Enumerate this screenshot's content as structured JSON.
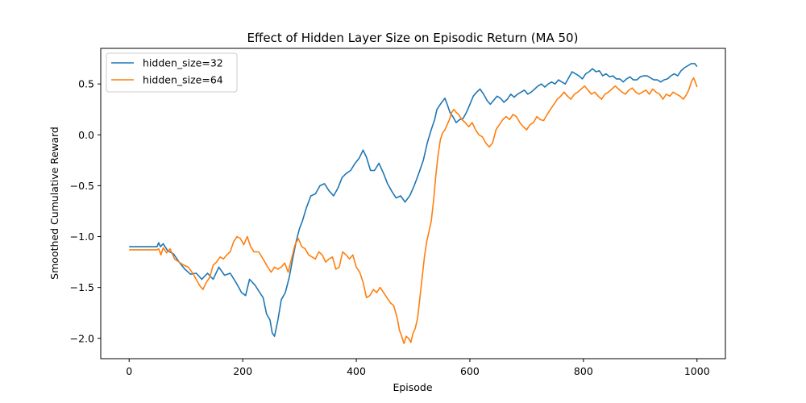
{
  "chart_data": {
    "type": "line",
    "title": "Effect of Hidden Layer Size on Episodic Return (MA 50)",
    "xlabel": "Episode",
    "ylabel": "Smoothed Cumulative Reward",
    "xlim": [
      -50,
      1050
    ],
    "ylim": [
      -2.2,
      0.85
    ],
    "xticks": [
      0,
      200,
      400,
      600,
      800,
      1000
    ],
    "yticks": [
      -2.0,
      -1.5,
      -1.0,
      -0.5,
      0.0,
      0.5
    ],
    "xtick_labels": [
      "0",
      "200",
      "400",
      "600",
      "800",
      "1000"
    ],
    "ytick_labels": [
      "−2.0",
      "−1.5",
      "−1.0",
      "−0.5",
      "0.0",
      "0.5"
    ],
    "grid": false,
    "legend_position": "top-left",
    "series": [
      {
        "name": "hidden_size=32",
        "color": "#1f77b4",
        "points": [
          [
            0,
            -1.1
          ],
          [
            49,
            -1.1
          ],
          [
            52,
            -1.06
          ],
          [
            55,
            -1.1
          ],
          [
            60,
            -1.07
          ],
          [
            68,
            -1.14
          ],
          [
            78,
            -1.17
          ],
          [
            88,
            -1.25
          ],
          [
            98,
            -1.32
          ],
          [
            108,
            -1.37
          ],
          [
            118,
            -1.36
          ],
          [
            128,
            -1.42
          ],
          [
            138,
            -1.36
          ],
          [
            148,
            -1.42
          ],
          [
            158,
            -1.3
          ],
          [
            168,
            -1.38
          ],
          [
            178,
            -1.36
          ],
          [
            188,
            -1.45
          ],
          [
            198,
            -1.55
          ],
          [
            205,
            -1.58
          ],
          [
            212,
            -1.42
          ],
          [
            222,
            -1.48
          ],
          [
            230,
            -1.55
          ],
          [
            236,
            -1.6
          ],
          [
            242,
            -1.76
          ],
          [
            248,
            -1.82
          ],
          [
            252,
            -1.95
          ],
          [
            256,
            -1.98
          ],
          [
            262,
            -1.82
          ],
          [
            268,
            -1.62
          ],
          [
            275,
            -1.55
          ],
          [
            282,
            -1.4
          ],
          [
            288,
            -1.22
          ],
          [
            294,
            -1.05
          ],
          [
            300,
            -0.92
          ],
          [
            305,
            -0.85
          ],
          [
            312,
            -0.72
          ],
          [
            320,
            -0.6
          ],
          [
            328,
            -0.58
          ],
          [
            336,
            -0.5
          ],
          [
            344,
            -0.48
          ],
          [
            352,
            -0.55
          ],
          [
            360,
            -0.6
          ],
          [
            368,
            -0.52
          ],
          [
            375,
            -0.42
          ],
          [
            382,
            -0.38
          ],
          [
            390,
            -0.35
          ],
          [
            398,
            -0.28
          ],
          [
            405,
            -0.23
          ],
          [
            412,
            -0.15
          ],
          [
            418,
            -0.22
          ],
          [
            425,
            -0.35
          ],
          [
            432,
            -0.35
          ],
          [
            440,
            -0.28
          ],
          [
            448,
            -0.38
          ],
          [
            455,
            -0.48
          ],
          [
            462,
            -0.55
          ],
          [
            470,
            -0.62
          ],
          [
            478,
            -0.6
          ],
          [
            486,
            -0.66
          ],
          [
            494,
            -0.6
          ],
          [
            502,
            -0.5
          ],
          [
            510,
            -0.38
          ],
          [
            518,
            -0.25
          ],
          [
            525,
            -0.08
          ],
          [
            532,
            0.05
          ],
          [
            538,
            0.15
          ],
          [
            542,
            0.25
          ],
          [
            548,
            0.3
          ],
          [
            552,
            0.33
          ],
          [
            556,
            0.36
          ],
          [
            560,
            0.3
          ],
          [
            565,
            0.22
          ],
          [
            570,
            0.18
          ],
          [
            576,
            0.12
          ],
          [
            582,
            0.15
          ],
          [
            588,
            0.16
          ],
          [
            594,
            0.22
          ],
          [
            600,
            0.3
          ],
          [
            606,
            0.38
          ],
          [
            612,
            0.42
          ],
          [
            618,
            0.45
          ],
          [
            624,
            0.4
          ],
          [
            630,
            0.34
          ],
          [
            636,
            0.3
          ],
          [
            642,
            0.34
          ],
          [
            648,
            0.38
          ],
          [
            654,
            0.36
          ],
          [
            660,
            0.32
          ],
          [
            666,
            0.35
          ],
          [
            672,
            0.4
          ],
          [
            678,
            0.37
          ],
          [
            684,
            0.4
          ],
          [
            690,
            0.42
          ],
          [
            696,
            0.44
          ],
          [
            702,
            0.4
          ],
          [
            708,
            0.42
          ],
          [
            714,
            0.45
          ],
          [
            720,
            0.48
          ],
          [
            726,
            0.5
          ],
          [
            732,
            0.47
          ],
          [
            738,
            0.5
          ],
          [
            744,
            0.52
          ],
          [
            750,
            0.5
          ],
          [
            756,
            0.54
          ],
          [
            762,
            0.52
          ],
          [
            768,
            0.5
          ],
          [
            774,
            0.56
          ],
          [
            780,
            0.62
          ],
          [
            786,
            0.6
          ],
          [
            792,
            0.58
          ],
          [
            798,
            0.55
          ],
          [
            804,
            0.6
          ],
          [
            810,
            0.62
          ],
          [
            816,
            0.65
          ],
          [
            822,
            0.62
          ],
          [
            828,
            0.63
          ],
          [
            834,
            0.58
          ],
          [
            840,
            0.6
          ],
          [
            846,
            0.57
          ],
          [
            852,
            0.58
          ],
          [
            858,
            0.55
          ],
          [
            864,
            0.55
          ],
          [
            870,
            0.52
          ],
          [
            876,
            0.55
          ],
          [
            882,
            0.57
          ],
          [
            888,
            0.54
          ],
          [
            894,
            0.54
          ],
          [
            900,
            0.57
          ],
          [
            906,
            0.58
          ],
          [
            912,
            0.58
          ],
          [
            918,
            0.56
          ],
          [
            924,
            0.54
          ],
          [
            930,
            0.54
          ],
          [
            936,
            0.52
          ],
          [
            942,
            0.54
          ],
          [
            948,
            0.55
          ],
          [
            954,
            0.58
          ],
          [
            960,
            0.6
          ],
          [
            966,
            0.58
          ],
          [
            972,
            0.63
          ],
          [
            978,
            0.66
          ],
          [
            984,
            0.68
          ],
          [
            990,
            0.7
          ],
          [
            996,
            0.7
          ],
          [
            1000,
            0.67
          ]
        ]
      },
      {
        "name": "hidden_size=64",
        "color": "#ff7f0e",
        "points": [
          [
            0,
            -1.13
          ],
          [
            49,
            -1.13
          ],
          [
            52,
            -1.12
          ],
          [
            56,
            -1.18
          ],
          [
            60,
            -1.11
          ],
          [
            66,
            -1.16
          ],
          [
            72,
            -1.12
          ],
          [
            80,
            -1.22
          ],
          [
            88,
            -1.25
          ],
          [
            96,
            -1.28
          ],
          [
            104,
            -1.3
          ],
          [
            112,
            -1.36
          ],
          [
            118,
            -1.42
          ],
          [
            124,
            -1.48
          ],
          [
            130,
            -1.52
          ],
          [
            136,
            -1.45
          ],
          [
            142,
            -1.4
          ],
          [
            148,
            -1.28
          ],
          [
            154,
            -1.25
          ],
          [
            160,
            -1.2
          ],
          [
            166,
            -1.22
          ],
          [
            172,
            -1.18
          ],
          [
            178,
            -1.15
          ],
          [
            184,
            -1.05
          ],
          [
            190,
            -1.0
          ],
          [
            196,
            -1.02
          ],
          [
            202,
            -1.08
          ],
          [
            208,
            -1.0
          ],
          [
            214,
            -1.1
          ],
          [
            220,
            -1.15
          ],
          [
            228,
            -1.15
          ],
          [
            236,
            -1.22
          ],
          [
            244,
            -1.3
          ],
          [
            250,
            -1.35
          ],
          [
            256,
            -1.3
          ],
          [
            262,
            -1.32
          ],
          [
            268,
            -1.3
          ],
          [
            274,
            -1.26
          ],
          [
            280,
            -1.35
          ],
          [
            286,
            -1.22
          ],
          [
            292,
            -1.08
          ],
          [
            298,
            -1.02
          ],
          [
            304,
            -1.1
          ],
          [
            310,
            -1.12
          ],
          [
            316,
            -1.18
          ],
          [
            322,
            -1.2
          ],
          [
            328,
            -1.22
          ],
          [
            334,
            -1.15
          ],
          [
            340,
            -1.18
          ],
          [
            346,
            -1.25
          ],
          [
            352,
            -1.22
          ],
          [
            358,
            -1.2
          ],
          [
            364,
            -1.32
          ],
          [
            370,
            -1.3
          ],
          [
            376,
            -1.15
          ],
          [
            382,
            -1.18
          ],
          [
            388,
            -1.22
          ],
          [
            394,
            -1.18
          ],
          [
            400,
            -1.3
          ],
          [
            406,
            -1.35
          ],
          [
            412,
            -1.45
          ],
          [
            418,
            -1.6
          ],
          [
            424,
            -1.58
          ],
          [
            430,
            -1.52
          ],
          [
            436,
            -1.55
          ],
          [
            442,
            -1.5
          ],
          [
            448,
            -1.55
          ],
          [
            454,
            -1.6
          ],
          [
            460,
            -1.65
          ],
          [
            466,
            -1.68
          ],
          [
            472,
            -1.8
          ],
          [
            476,
            -1.92
          ],
          [
            480,
            -1.98
          ],
          [
            484,
            -2.05
          ],
          [
            488,
            -1.98
          ],
          [
            492,
            -2.0
          ],
          [
            496,
            -2.04
          ],
          [
            500,
            -1.95
          ],
          [
            504,
            -1.9
          ],
          [
            508,
            -1.8
          ],
          [
            512,
            -1.6
          ],
          [
            516,
            -1.4
          ],
          [
            520,
            -1.2
          ],
          [
            524,
            -1.05
          ],
          [
            528,
            -0.95
          ],
          [
            532,
            -0.85
          ],
          [
            536,
            -0.65
          ],
          [
            540,
            -0.4
          ],
          [
            544,
            -0.2
          ],
          [
            548,
            -0.05
          ],
          [
            552,
            0.02
          ],
          [
            556,
            0.05
          ],
          [
            560,
            0.1
          ],
          [
            564,
            0.15
          ],
          [
            568,
            0.22
          ],
          [
            572,
            0.25
          ],
          [
            576,
            0.22
          ],
          [
            580,
            0.2
          ],
          [
            586,
            0.15
          ],
          [
            592,
            0.12
          ],
          [
            598,
            0.08
          ],
          [
            604,
            0.12
          ],
          [
            610,
            0.05
          ],
          [
            616,
            0.0
          ],
          [
            622,
            -0.02
          ],
          [
            628,
            -0.08
          ],
          [
            634,
            -0.12
          ],
          [
            640,
            -0.08
          ],
          [
            646,
            0.05
          ],
          [
            652,
            0.1
          ],
          [
            658,
            0.15
          ],
          [
            664,
            0.18
          ],
          [
            670,
            0.15
          ],
          [
            676,
            0.2
          ],
          [
            682,
            0.18
          ],
          [
            688,
            0.12
          ],
          [
            694,
            0.08
          ],
          [
            700,
            0.05
          ],
          [
            706,
            0.1
          ],
          [
            712,
            0.12
          ],
          [
            718,
            0.18
          ],
          [
            724,
            0.15
          ],
          [
            730,
            0.14
          ],
          [
            736,
            0.2
          ],
          [
            742,
            0.25
          ],
          [
            748,
            0.3
          ],
          [
            754,
            0.35
          ],
          [
            760,
            0.38
          ],
          [
            766,
            0.42
          ],
          [
            772,
            0.38
          ],
          [
            778,
            0.35
          ],
          [
            784,
            0.4
          ],
          [
            790,
            0.42
          ],
          [
            796,
            0.45
          ],
          [
            802,
            0.48
          ],
          [
            808,
            0.44
          ],
          [
            814,
            0.4
          ],
          [
            820,
            0.42
          ],
          [
            826,
            0.38
          ],
          [
            832,
            0.35
          ],
          [
            838,
            0.4
          ],
          [
            844,
            0.42
          ],
          [
            850,
            0.45
          ],
          [
            856,
            0.48
          ],
          [
            862,
            0.45
          ],
          [
            868,
            0.42
          ],
          [
            874,
            0.4
          ],
          [
            880,
            0.44
          ],
          [
            886,
            0.46
          ],
          [
            892,
            0.42
          ],
          [
            898,
            0.4
          ],
          [
            904,
            0.42
          ],
          [
            910,
            0.44
          ],
          [
            916,
            0.4
          ],
          [
            922,
            0.45
          ],
          [
            928,
            0.42
          ],
          [
            934,
            0.4
          ],
          [
            940,
            0.35
          ],
          [
            946,
            0.4
          ],
          [
            952,
            0.38
          ],
          [
            958,
            0.42
          ],
          [
            964,
            0.4
          ],
          [
            970,
            0.38
          ],
          [
            976,
            0.35
          ],
          [
            982,
            0.4
          ],
          [
            986,
            0.45
          ],
          [
            990,
            0.52
          ],
          [
            994,
            0.56
          ],
          [
            997,
            0.52
          ],
          [
            1000,
            0.47
          ]
        ]
      }
    ]
  }
}
